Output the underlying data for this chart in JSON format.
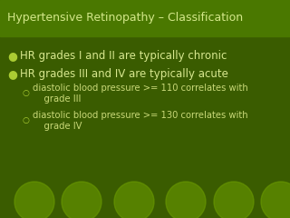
{
  "background_color": "#3a5c00",
  "title": "Hypertensive Retinopathy – Classification",
  "title_color": "#d4e88a",
  "title_fontsize": 9.0,
  "title_bg_color": "#4a7800",
  "circle_color": "#6a9a00",
  "bullet_color": "#aacc33",
  "text_color": "#d8e890",
  "sub_text_color": "#c8d878",
  "bullets": [
    "HR grades I and II are typically chronic",
    "HR grades III and IV are typically acute"
  ],
  "sub_bullets": [
    "diastolic blood pressure >= 110 correlates with\n    grade III",
    "diastolic blood pressure >= 130 correlates with\n    grade IV"
  ],
  "bullet_fontsize": 8.5,
  "sub_bullet_fontsize": 7.2
}
